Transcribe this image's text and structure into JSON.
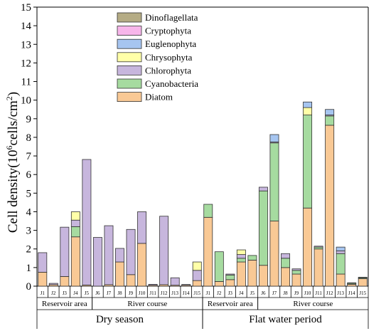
{
  "chart_data": {
    "type": "bar",
    "stacked": true,
    "title": "",
    "ylabel_main": "Cell density(10",
    "ylabel_sup": "6",
    "ylabel_mid": "cells/cm",
    "ylabel_sup2": "2",
    "ylabel_end": ")",
    "ylim": [
      0,
      15
    ],
    "yticks": [
      "0",
      "1",
      "2",
      "3",
      "4",
      "5",
      "6",
      "7",
      "8",
      "9",
      "10",
      "11",
      "12",
      "13",
      "14",
      "15"
    ],
    "legend_position": "top-left",
    "categories": [
      "J1",
      "J2",
      "J3",
      "J4",
      "J5",
      "J6",
      "J7",
      "J8",
      "J9",
      "J10",
      "J11",
      "J12",
      "J13",
      "J14",
      "J15",
      "J1",
      "J2",
      "J3",
      "J4",
      "J5",
      "J6",
      "J7",
      "J8",
      "J9",
      "J10",
      "J11",
      "J12",
      "J13",
      "J14",
      "J15"
    ],
    "groups": [
      {
        "label": "Reservoir area",
        "start": 0,
        "end": 4
      },
      {
        "label": "River course",
        "start": 5,
        "end": 14
      },
      {
        "label": "Reservoir area",
        "start": 15,
        "end": 19
      },
      {
        "label": "River course",
        "start": 20,
        "end": 29
      }
    ],
    "seasons": [
      {
        "label": "Dry season",
        "start": 0,
        "end": 14
      },
      {
        "label": "Flat water period",
        "start": 15,
        "end": 29
      }
    ],
    "series": [
      {
        "name": "Diatom",
        "color": "#f9c995",
        "values": [
          0.75,
          0.08,
          0.52,
          2.65,
          0.06,
          0,
          0.08,
          1.3,
          0.62,
          2.3,
          0.05,
          0.08,
          0.05,
          0.05,
          0.3,
          3.7,
          0.25,
          0.35,
          1.3,
          1.4,
          1.12,
          3.5,
          1.0,
          0.65,
          4.2,
          2.0,
          8.65,
          0.65,
          0.1,
          0.4
        ]
      },
      {
        "name": "Cyanobacteria",
        "color": "#a6dba0",
        "values": [
          0,
          0,
          0,
          0.55,
          0,
          0,
          0,
          0,
          0,
          0,
          0,
          0,
          0,
          0,
          0,
          0.7,
          1.6,
          0.25,
          0.2,
          0.25,
          4.0,
          4.2,
          0.5,
          0.2,
          5.0,
          0.1,
          0.5,
          1.1,
          0.05,
          0.05
        ]
      },
      {
        "name": "Chlorophyta",
        "color": "#c7b6dd",
        "values": [
          1.05,
          0.07,
          2.65,
          0.35,
          6.75,
          2.62,
          3.17,
          0.73,
          2.43,
          1.7,
          0.05,
          3.68,
          0.4,
          0.04,
          0.55,
          0,
          0,
          0.05,
          0.2,
          0,
          0.2,
          0.05,
          0.25,
          0.08,
          0,
          0.05,
          0.05,
          0.15,
          0.03,
          0.03
        ]
      },
      {
        "name": "Chrysophyta",
        "color": "#ffffa8",
        "values": [
          0,
          0,
          0,
          0.45,
          0,
          0,
          0,
          0,
          0,
          0,
          0,
          0,
          0,
          0,
          0.45,
          0,
          0,
          0,
          0.25,
          0,
          0,
          0,
          0,
          0,
          0.4,
          0,
          0,
          0,
          0,
          0
        ]
      },
      {
        "name": "Euglenophyta",
        "color": "#a6c5f0",
        "values": [
          0,
          0,
          0,
          0,
          0,
          0,
          0,
          0,
          0,
          0,
          0,
          0,
          0,
          0,
          0,
          0,
          0,
          0,
          0,
          0,
          0,
          0.4,
          0,
          0,
          0.3,
          0,
          0.3,
          0.2,
          0,
          0
        ]
      },
      {
        "name": "Cryptophyta",
        "color": "#f7b6ea",
        "values": [
          0,
          0,
          0,
          0,
          0,
          0,
          0,
          0,
          0,
          0,
          0,
          0,
          0,
          0,
          0,
          0,
          0,
          0,
          0,
          0,
          0,
          0,
          0,
          0,
          0,
          0,
          0,
          0,
          0,
          0
        ]
      },
      {
        "name": "Dinoflagellata",
        "color": "#b5ac85",
        "values": [
          0,
          0,
          0,
          0,
          0,
          0,
          0,
          0,
          0,
          0,
          0,
          0,
          0,
          0,
          0,
          0,
          0,
          0,
          0,
          0,
          0,
          0,
          0,
          0,
          0,
          0,
          0,
          0,
          0,
          0
        ]
      }
    ],
    "legend_order": [
      "Dinoflagellata",
      "Cryptophyta",
      "Euglenophyta",
      "Chrysophyta",
      "Chlorophyta",
      "Cyanobacteria",
      "Diatom"
    ]
  }
}
